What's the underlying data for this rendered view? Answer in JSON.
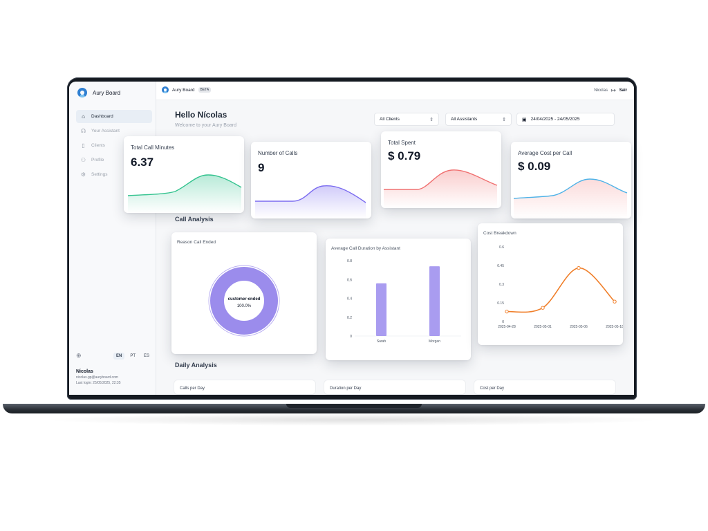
{
  "sidebar": {
    "brand": "Aury Board",
    "items": [
      {
        "label": "Dashboard",
        "icon": "home-icon"
      },
      {
        "label": "Your Assistant",
        "icon": "headset-icon"
      },
      {
        "label": "Clients",
        "icon": "building-icon"
      },
      {
        "label": "Profile",
        "icon": "users-icon"
      },
      {
        "label": "Settings",
        "icon": "gear-icon"
      }
    ],
    "languages": [
      "EN",
      "PT",
      "ES"
    ],
    "active_language": "EN",
    "user": {
      "name": "Nicolas",
      "email": "nicolas.gp@auryboard.com",
      "last_login": "Last login: 25/05/2025, 22:35"
    }
  },
  "topbar": {
    "brand": "Aury Board",
    "badge": "BETA",
    "user": "Nicolas",
    "logout": "Sair"
  },
  "main": {
    "greeting": "Hello Nícolas",
    "subtitle": "Welcome to your Aury Board",
    "filters": {
      "clients": "All Clients",
      "assistants": "All Assistants",
      "date_range": "24/04/2025 - 24/05/2025"
    },
    "call_analysis_title": "Call Analysis",
    "daily_analysis_title": "Daily Analysis",
    "daily_cards": [
      "Calls per Day",
      "Duration per Day",
      "Cost per Day"
    ]
  },
  "kpis": [
    {
      "title": "Total Call Minutes",
      "value": "6.37",
      "color": "#34c38f"
    },
    {
      "title": "Number of Calls",
      "value": "9",
      "color": "#7b6cf0"
    },
    {
      "title": "Total Spent",
      "value": "$ 0.79",
      "color": "#f07171"
    },
    {
      "title": "Average Cost per Call",
      "value": "$ 0.09",
      "color": "#4fb3e8"
    }
  ],
  "chart_data": [
    {
      "type": "pie",
      "title": "Reason Call Ended",
      "labels": [
        "customer-ended"
      ],
      "values": [
        100.0
      ],
      "value_labels": [
        "100.0%"
      ],
      "colors": [
        "#9b8cec"
      ]
    },
    {
      "type": "bar",
      "title": "Average Call Duration by Assistant",
      "categories": [
        "Sarah",
        "Morgan"
      ],
      "values": [
        0.56,
        0.74
      ],
      "ylim": [
        0,
        0.8
      ],
      "yticks": [
        "0",
        "0.2",
        "0.4",
        "0.6",
        "0.8"
      ],
      "color": "#a99cf0"
    },
    {
      "type": "line",
      "title": "Cost Breakdown",
      "x": [
        "2025-04-28",
        "2025-05-01",
        "2025-05-06",
        "2025-05-18"
      ],
      "y": [
        0.08,
        0.11,
        0.43,
        0.16
      ],
      "ylim": [
        0,
        0.6
      ],
      "yticks": [
        "0",
        "0.15",
        "0.3",
        "0.45",
        "0.6"
      ],
      "color": "#f07f2a"
    }
  ]
}
